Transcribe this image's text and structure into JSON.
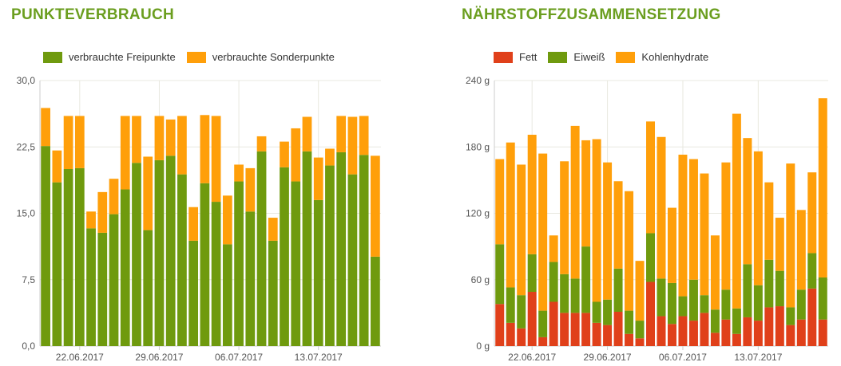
{
  "colors": {
    "title": "#6b9e1f",
    "green": "#6f9a0e",
    "orange": "#ff9f0a",
    "red": "#e0401a",
    "grid": "#e8e8e0",
    "axis": "#cccccc"
  },
  "chart_data": [
    {
      "type": "bar",
      "stacked": true,
      "title": "PUNKTEVERBRAUCH",
      "legend_position": "top-left",
      "grid": true,
      "ylim": [
        0,
        30
      ],
      "y_tick_labels": [
        "0,0",
        "7,5",
        "15,0",
        "22,5",
        "30,0"
      ],
      "y_tick_values": [
        0,
        7.5,
        15,
        22.5,
        30
      ],
      "x_tick_labels": [
        "22.06.2017",
        "29.06.2017",
        "06.07.2017",
        "13.07.2017"
      ],
      "x_tick_positions": [
        3,
        10,
        17,
        24
      ],
      "series": [
        {
          "name": "verbrauchte Freipunkte",
          "color_key": "green",
          "values": [
            22.6,
            18.5,
            20.0,
            20.1,
            13.3,
            12.8,
            14.9,
            17.7,
            20.7,
            13.1,
            21.0,
            21.5,
            19.4,
            11.9,
            18.4,
            16.3,
            11.5,
            18.6,
            15.2,
            22.0,
            11.9,
            20.2,
            18.6,
            22.0,
            16.5,
            20.4,
            21.9,
            19.4,
            21.6,
            10.1
          ]
        },
        {
          "name": "verbrauchte Sonderpunkte",
          "color_key": "orange",
          "values": [
            4.3,
            3.6,
            6.0,
            5.9,
            1.9,
            4.6,
            4.0,
            8.3,
            5.3,
            8.3,
            5.0,
            4.1,
            6.6,
            3.8,
            7.7,
            9.7,
            5.5,
            1.9,
            4.9,
            1.7,
            2.6,
            2.9,
            6.0,
            3.9,
            4.8,
            1.9,
            4.1,
            6.5,
            4.4,
            11.4
          ]
        }
      ]
    },
    {
      "type": "bar",
      "stacked": true,
      "title": "NÄHRSTOFFZUSAMMENSETZUNG",
      "legend_position": "top-left",
      "grid": true,
      "ylim": [
        0,
        240
      ],
      "y_tick_labels": [
        "0 g",
        "60 g",
        "120 g",
        "180 g",
        "240 g"
      ],
      "y_tick_values": [
        0,
        60,
        120,
        180,
        240
      ],
      "x_tick_labels": [
        "22.06.2017",
        "29.06.2017",
        "06.07.2017",
        "13.07.2017"
      ],
      "x_tick_positions": [
        3,
        10,
        17,
        24
      ],
      "series": [
        {
          "name": "Fett",
          "color_key": "red",
          "values": [
            38,
            21,
            16,
            49,
            8,
            40,
            30,
            30,
            30,
            21,
            19,
            31,
            11,
            7,
            58,
            27,
            20,
            27,
            23,
            30,
            12,
            24,
            11,
            26,
            23,
            35,
            36,
            19,
            24,
            52,
            24
          ]
        },
        {
          "name": "Eiweiß",
          "color_key": "green",
          "values": [
            54,
            32,
            30,
            34,
            24,
            36,
            35,
            31,
            60,
            19,
            23,
            39,
            21,
            16,
            44,
            34,
            37,
            18,
            37,
            16,
            21,
            27,
            23,
            48,
            32,
            43,
            32,
            16,
            27,
            32,
            38
          ]
        },
        {
          "name": "Kohlenhydrate",
          "color_key": "orange",
          "values": [
            77,
            131,
            118,
            108,
            142,
            24,
            102,
            138,
            96,
            147,
            124,
            79,
            108,
            54,
            101,
            128,
            68,
            128,
            109,
            110,
            67,
            115,
            176,
            114,
            121,
            70,
            48,
            130,
            72,
            73,
            162
          ]
        }
      ]
    }
  ]
}
